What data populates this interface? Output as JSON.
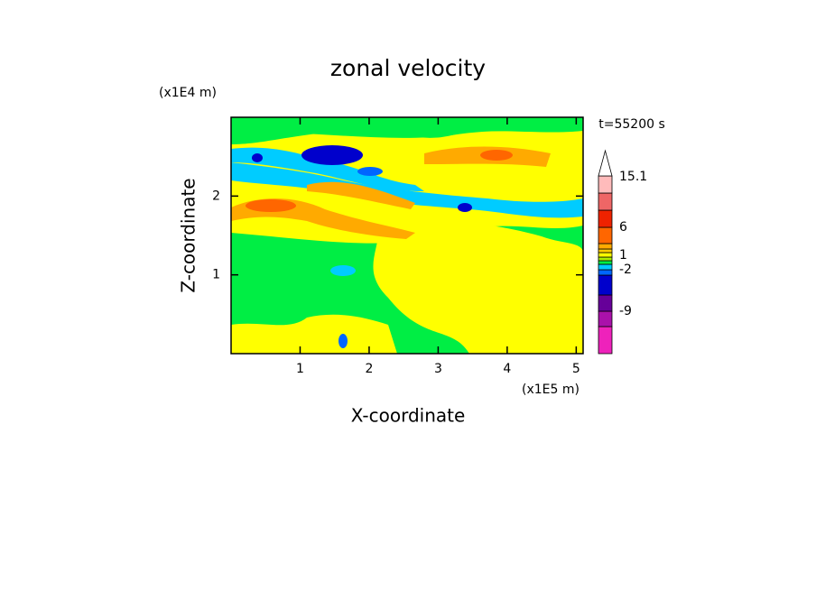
{
  "chart_data": {
    "type": "contour",
    "title": "zonal velocity",
    "x_label": "X-coordinate",
    "y_label": "Z-coordinate",
    "x_unit": "(x1E5 m)",
    "y_unit": "(x1E4 m)",
    "annotation": "t=55200 s",
    "xlim": [
      0,
      5.1
    ],
    "xticks": [
      1,
      2,
      3,
      4,
      5
    ],
    "ylim": [
      0,
      3
    ],
    "yticks": [
      1,
      2
    ],
    "colorbar_colors": [
      "#ee22bb",
      "#aa11aa",
      "#660099",
      "#0000cc",
      "#0066ff",
      "#00ccff",
      "#00ee44",
      "#aaee00",
      "#ffff00",
      "#ffcc00",
      "#ffaa00",
      "#ff6600",
      "#ee2200",
      "#ee6666",
      "#ffbbbb",
      "#ffffff"
    ],
    "colorbar_labels": [
      "15.1",
      "6",
      "1",
      "-2",
      "-9"
    ]
  }
}
